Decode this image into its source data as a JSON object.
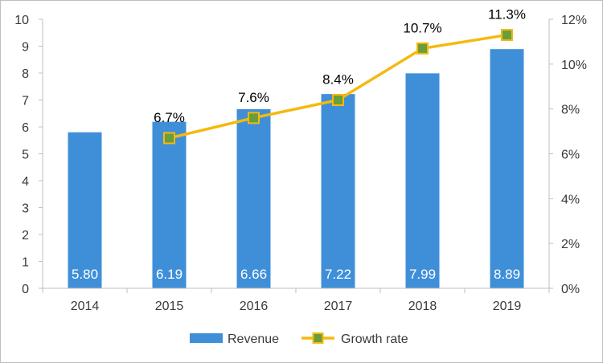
{
  "chart_data": {
    "type": "bar",
    "categories": [
      "2014",
      "2015",
      "2016",
      "2017",
      "2018",
      "2019"
    ],
    "series": [
      {
        "name": "Revenue",
        "kind": "bar",
        "axis": "left",
        "values": [
          5.8,
          6.19,
          6.66,
          7.22,
          7.99,
          8.89
        ],
        "labels": [
          "5.80",
          "6.19",
          "6.66",
          "7.22",
          "7.99",
          "8.89"
        ],
        "color": "#3f8fd8"
      },
      {
        "name": "Growth rate",
        "kind": "line",
        "axis": "right",
        "x": [
          "2015",
          "2016",
          "2017",
          "2018",
          "2019"
        ],
        "values": [
          6.7,
          7.6,
          8.4,
          10.7,
          11.3
        ],
        "labels": [
          "6.7%",
          "7.6%",
          "8.4%",
          "10.7%",
          "11.3%"
        ],
        "color": "#f5b90f",
        "marker_color": "#6a9e3a"
      }
    ],
    "y_left": {
      "min": 0,
      "max": 10,
      "ticks": [
        "0",
        "1",
        "2",
        "3",
        "4",
        "5",
        "6",
        "7",
        "8",
        "9",
        "10"
      ]
    },
    "y_right": {
      "min": 0,
      "max": 12,
      "ticks": [
        "0%",
        "2%",
        "4%",
        "6%",
        "8%",
        "10%",
        "12%"
      ]
    },
    "grid": false,
    "legend_position": "bottom-center"
  }
}
